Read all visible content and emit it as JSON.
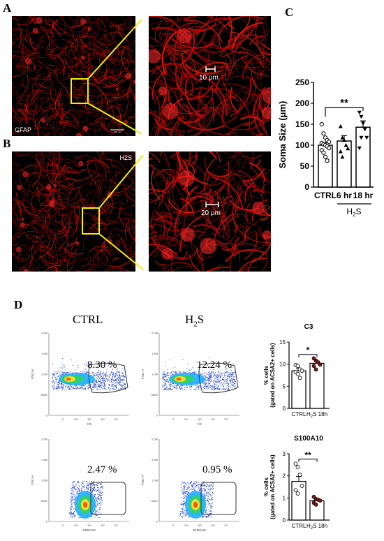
{
  "panels": {
    "a": "A",
    "b": "B",
    "c": "C",
    "d": "D"
  },
  "images": {
    "gfap_label": "GFAP",
    "h2s_label": "H2S",
    "scale_a": "10 μm",
    "scale_b": "20 μm",
    "scalebar_small": "100 μm"
  },
  "colors": {
    "stain": "#e01010",
    "zoom_box": "#f0f000",
    "background": "#000000",
    "ctrl_dot": "#ffffff",
    "h2s_dot": "#8b1a1a"
  },
  "flow": {
    "ctrl_title": "CTRL",
    "h2s_title": "H",
    "h2s_sub": "2",
    "h2s_tail": "S",
    "c3_ctrl_pct": "8.30 %",
    "c3_h2s_pct": "12.24 %",
    "s100_ctrl_pct": "2.47 %",
    "s100_h2s_pct": "0.95 %",
    "ylabel": "FSC-H",
    "xlabel_c3": "C3",
    "xlabel_s100": "S100A10",
    "yticks": [
      "2.0M",
      "1.5M",
      "1.0M",
      "500K",
      "0"
    ],
    "xticks": [
      "0",
      "10⁴",
      "10⁵",
      "10⁶",
      "10⁷"
    ]
  },
  "chart_data": [
    {
      "type": "bar",
      "title": "",
      "ylabel": "Soma Size (μm)",
      "categories": [
        "CTRL",
        "6 hr",
        "18 hr"
      ],
      "group_label": "H₂S",
      "group_label_parts": {
        "main": "H",
        "sub": "2",
        "tail": "S"
      },
      "values": [
        100,
        110,
        143
      ],
      "errors": [
        6,
        13,
        15
      ],
      "points": [
        [
          150,
          128,
          118,
          112,
          108,
          105,
          102,
          100,
          97,
          93,
          88,
          82,
          72,
          63
        ],
        [
          145,
          118,
          112,
          100,
          92,
          85,
          72
        ],
        [
          178,
          168,
          152,
          138,
          118,
          93,
          118
        ]
      ],
      "markers": [
        "circle",
        "triangle-up",
        "triangle-down"
      ],
      "ylim": [
        0,
        250
      ],
      "yticks": [
        0,
        50,
        100,
        150,
        200,
        250
      ],
      "significance": {
        "label": "**",
        "from": "CTRL",
        "to": "18 hr"
      }
    },
    {
      "type": "bar",
      "title": "C3",
      "ylabel": "% cells",
      "ylabel2": "(gated on ACSA2+ cells)",
      "categories": [
        "CTRL",
        "H₂S 18h"
      ],
      "category_parts": [
        {
          "main": "CTRL"
        },
        {
          "main": "H",
          "sub": "2",
          "tail": "S 18h"
        }
      ],
      "values": [
        8.5,
        10.2
      ],
      "errors": [
        0.5,
        0.5
      ],
      "points": [
        [
          9.8,
          9.6,
          8.8,
          8.5,
          8.2,
          7.8,
          6.9
        ],
        [
          11.3,
          10.8,
          10.4,
          9.9,
          9.6,
          8.8
        ]
      ],
      "ylim": [
        0,
        15
      ],
      "yticks": [
        0,
        5,
        10,
        15
      ],
      "significance": {
        "label": "*",
        "from": "CTRL",
        "to": "H₂S 18h"
      }
    },
    {
      "type": "bar",
      "title": "S100A10",
      "ylabel": "% cells",
      "ylabel2": "(gated on ACSA2+ cells)",
      "categories": [
        "CTRL",
        "H₂S 18h"
      ],
      "category_parts": [
        {
          "main": "CTRL"
        },
        {
          "main": "H",
          "sub": "2",
          "tail": "S 18h"
        }
      ],
      "values": [
        1.75,
        0.88
      ],
      "errors": [
        0.22,
        0.08
      ],
      "points": [
        [
          2.55,
          2.4,
          2.05,
          1.55,
          1.35,
          1.2
        ],
        [
          1.05,
          0.95,
          0.92,
          0.88,
          0.78,
          0.7
        ]
      ],
      "ylim": [
        0,
        3
      ],
      "yticks": [
        0,
        1,
        2,
        3
      ],
      "significance": {
        "label": "**",
        "from": "CTRL",
        "to": "H₂S 18h"
      }
    }
  ]
}
